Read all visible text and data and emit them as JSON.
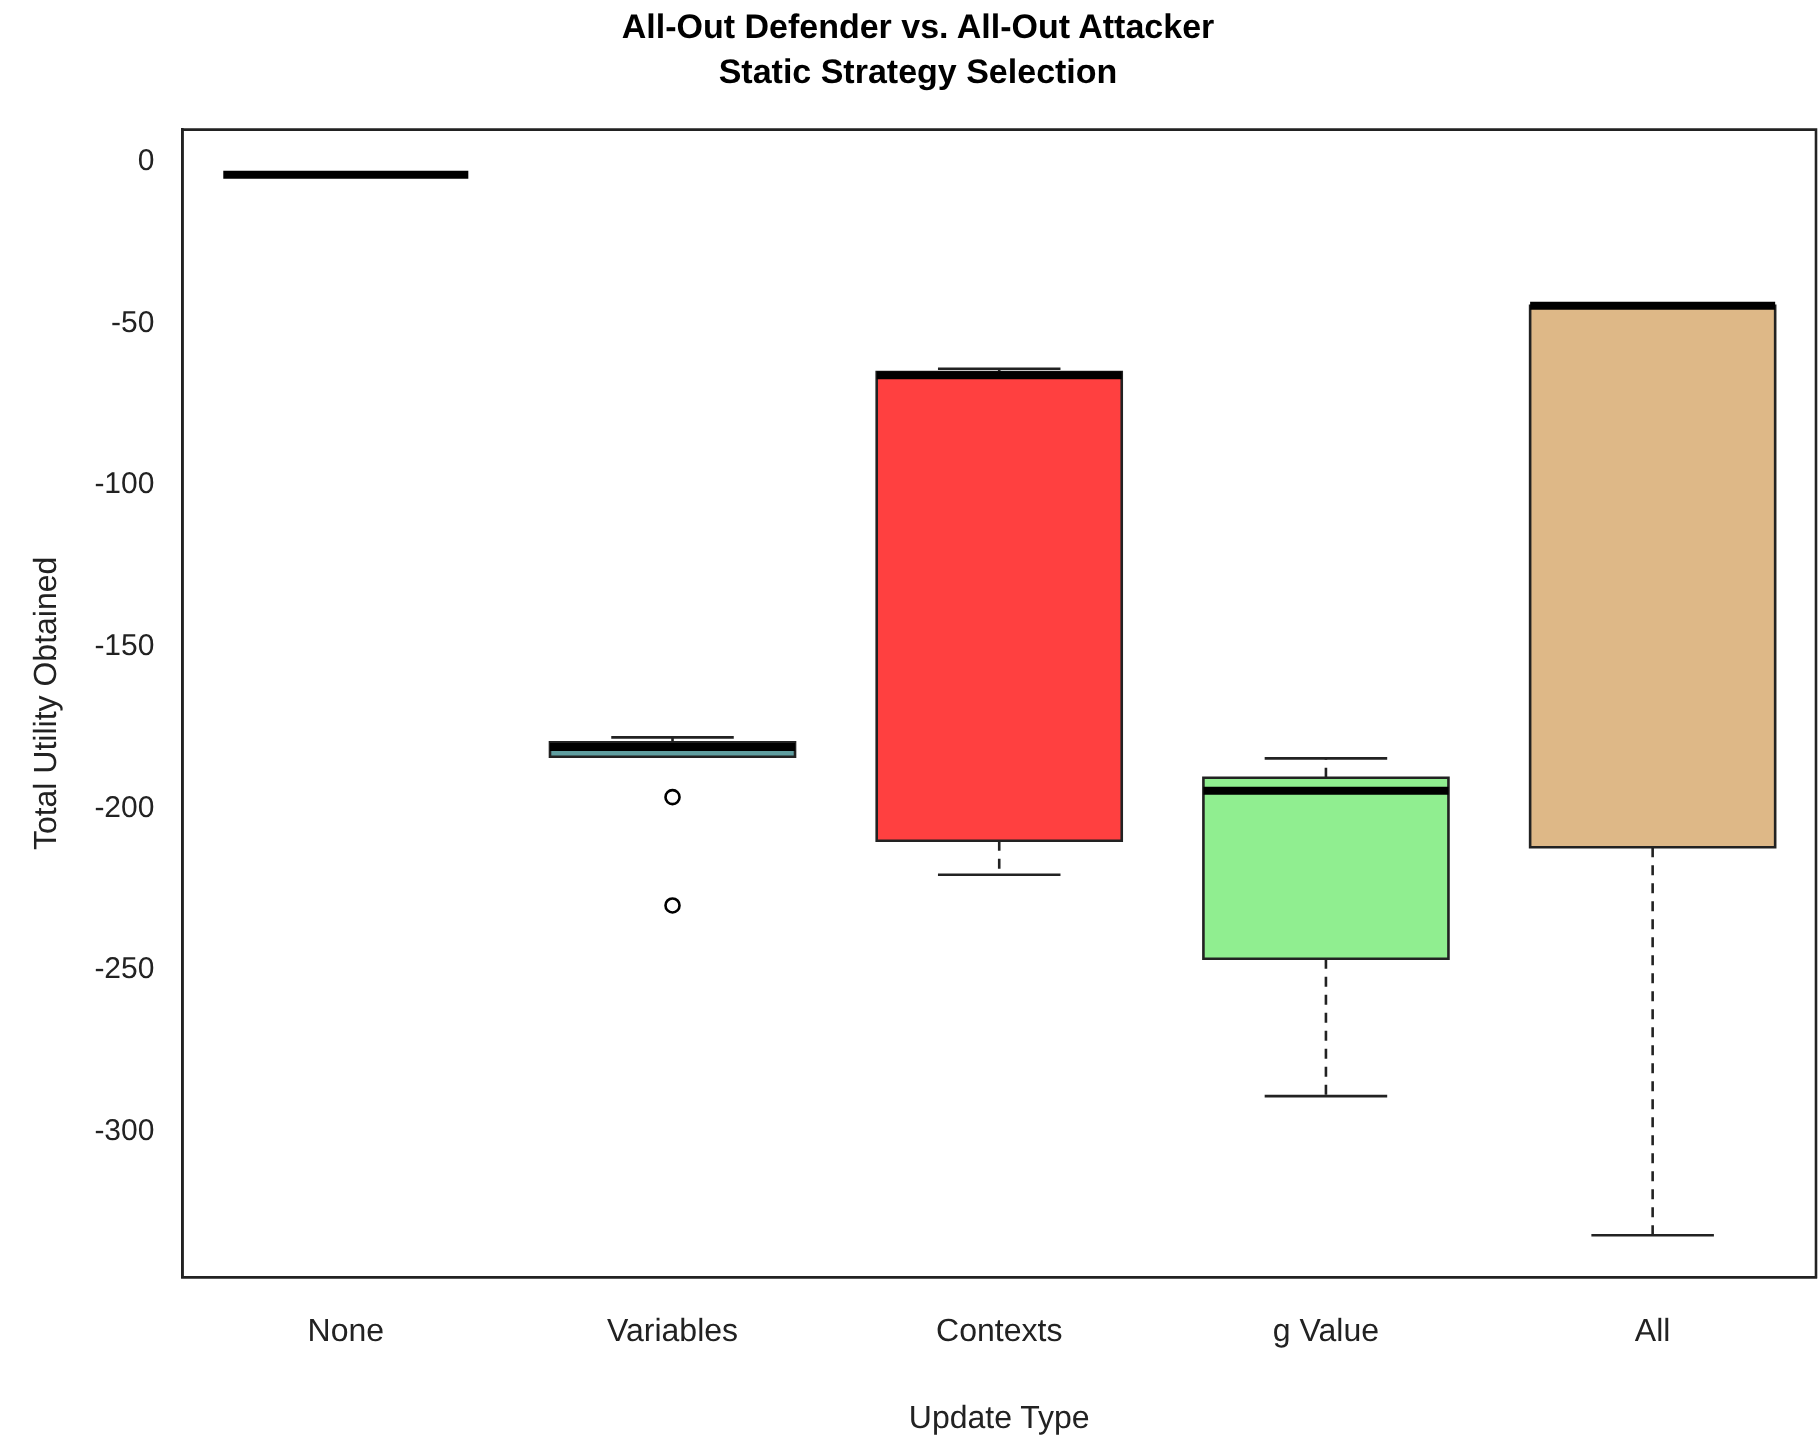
{
  "chart_data": {
    "type": "box",
    "title": "All-Out Defender vs. All-Out Attacker",
    "subtitle": "Static Strategy Selection",
    "xlabel": "Update Type",
    "ylabel": "Total Utility Obtained",
    "categories": [
      "None",
      "Variables",
      "Contexts",
      "g Value",
      "All"
    ],
    "colors": [
      "#000000",
      "#5f9ea0",
      "#ff4040",
      "#90ee90",
      "#deb887"
    ],
    "boxes": [
      {
        "low": -4,
        "q1": -4,
        "median": -4,
        "q3": -4,
        "high": -4
      },
      {
        "low": -184,
        "q1": -184,
        "median": -181,
        "q3": -179.5,
        "high": -178,
        "outliers": [
          -196.5,
          -230
        ]
      },
      {
        "low": -220.5,
        "q1": -210,
        "median": -66,
        "q3": -65,
        "high": -64
      },
      {
        "low": -289,
        "q1": -246.5,
        "median": -194.5,
        "q3": -190.5,
        "high": -184.5
      },
      {
        "low": -332,
        "q1": -212,
        "median": -44.5,
        "q3": -44.5,
        "high": -44.5
      }
    ],
    "ylim": [
      -345,
      10
    ],
    "yticks": [
      0,
      -50,
      -100,
      -150,
      -200,
      -250,
      -300
    ],
    "grid": false,
    "legend": false
  }
}
